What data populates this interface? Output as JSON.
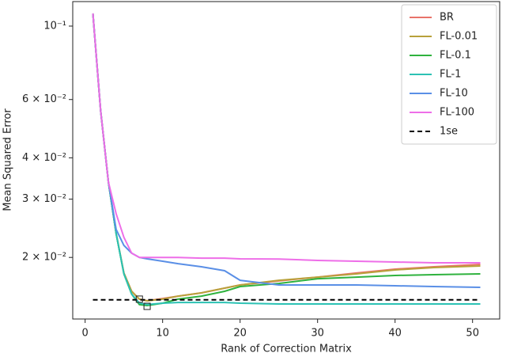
{
  "chart_data": {
    "type": "line",
    "x_label": "Rank of Correction Matrix",
    "y_label": "Mean Squared Error",
    "y_scale": "log",
    "x": [
      1,
      2,
      3,
      4,
      5,
      6,
      7,
      8,
      10,
      12,
      15,
      18,
      20,
      25,
      30,
      35,
      40,
      45,
      51
    ],
    "series": [
      {
        "name": "BR",
        "color": "#e8736a",
        "values": [
          0.1092,
          0.0555,
          0.0338,
          0.0236,
          0.01794,
          0.0158,
          0.01496,
          0.01479,
          0.01503,
          0.01528,
          0.01563,
          0.01615,
          0.01651,
          0.01698,
          0.01744,
          0.01794,
          0.01843,
          0.01874,
          0.01905
        ]
      },
      {
        "name": "FL-0.01",
        "color": "#b8a13a",
        "values": [
          0.1092,
          0.0555,
          0.0338,
          0.0236,
          0.01794,
          0.0158,
          0.01496,
          0.01479,
          0.01496,
          0.01528,
          0.01563,
          0.01615,
          0.01651,
          0.01706,
          0.01744,
          0.01784,
          0.01833,
          0.01864,
          0.01884
        ]
      },
      {
        "name": "FL-0.1",
        "color": "#2fb23e",
        "values": [
          0.1092,
          0.0555,
          0.0338,
          0.0236,
          0.01784,
          0.0155,
          0.0144,
          0.01431,
          0.01455,
          0.01496,
          0.01528,
          0.0158,
          0.01633,
          0.01669,
          0.01725,
          0.01744,
          0.01764,
          0.01774,
          0.01784
        ]
      },
      {
        "name": "FL-1",
        "color": "#2cc2b4",
        "values": [
          0.1092,
          0.0555,
          0.0338,
          0.0236,
          0.01784,
          0.0155,
          0.01455,
          0.0144,
          0.01455,
          0.01462,
          0.01462,
          0.01462,
          0.01455,
          0.01447,
          0.01447,
          0.01447,
          0.01447,
          0.01447,
          0.01447
        ]
      },
      {
        "name": "FL-10",
        "color": "#5a8fe6",
        "values": [
          0.1092,
          0.0555,
          0.0338,
          0.0243,
          0.02175,
          0.0206,
          0.02,
          0.0198,
          0.01948,
          0.01915,
          0.01874,
          0.01823,
          0.01706,
          0.01651,
          0.01651,
          0.01651,
          0.01642,
          0.01633,
          0.01624
        ]
      },
      {
        "name": "FL-100",
        "color": "#ee6ee8",
        "values": [
          0.1092,
          0.0555,
          0.0338,
          0.0271,
          0.023,
          0.0206,
          0.02,
          0.02,
          0.02,
          0.02,
          0.0199,
          0.0199,
          0.0198,
          0.01978,
          0.01959,
          0.01948,
          0.01937,
          0.01926,
          0.01926
        ]
      },
      {
        "name": "1se",
        "color": "#000000",
        "dashed": true,
        "values": [
          0.0149,
          0.0149,
          0.0149,
          0.0149,
          0.0149,
          0.0149,
          0.0149,
          0.0149,
          0.0149,
          0.0149,
          0.0149,
          0.0149,
          0.0149,
          0.0149,
          0.0149,
          0.0149,
          0.0149,
          0.0149,
          0.0149
        ]
      }
    ],
    "selected_points": [
      {
        "x": 7,
        "y": 0.01496
      },
      {
        "x": 8,
        "y": 0.01423
      }
    ],
    "xlim": [
      -1.6,
      53.5
    ],
    "xticks": [
      0,
      10,
      20,
      30,
      40,
      50
    ],
    "ylim": [
      0.01303,
      0.1186
    ],
    "yticks": [
      {
        "value": 0.02,
        "label": "2 × 10⁻²"
      },
      {
        "value": 0.03,
        "label": "3 × 10⁻²"
      },
      {
        "value": 0.04,
        "label": "4 × 10⁻²"
      },
      {
        "value": 0.06,
        "label": "6 × 10⁻²"
      },
      {
        "value": 0.1,
        "label": "10⁻¹"
      }
    ],
    "legend": "upper right"
  }
}
